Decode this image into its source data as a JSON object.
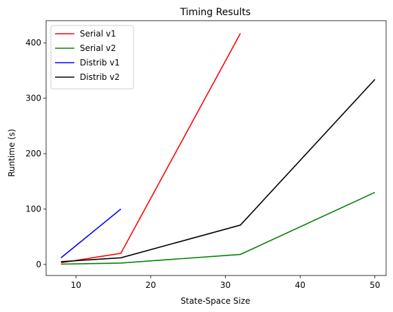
{
  "chart_data": {
    "type": "line",
    "title": "Timing Results",
    "xlabel": "State-Space Size",
    "ylabel": "Runtime (s)",
    "xlim": [
      6,
      51.5
    ],
    "ylim": [
      -20,
      440
    ],
    "xticks": [
      10,
      20,
      30,
      40,
      50
    ],
    "yticks": [
      0,
      100,
      200,
      300,
      400
    ],
    "grid": false,
    "legend": "top-left",
    "series": [
      {
        "name": "Serial v1",
        "color": "#ff0000",
        "x": [
          8,
          16,
          32
        ],
        "y": [
          3,
          20,
          417
        ]
      },
      {
        "name": "Serial v2",
        "color": "#008000",
        "x": [
          8,
          16,
          32,
          50
        ],
        "y": [
          0.5,
          2.5,
          18,
          130
        ]
      },
      {
        "name": "Distrib v1",
        "color": "#0000ff",
        "x": [
          8,
          16
        ],
        "y": [
          12,
          100
        ]
      },
      {
        "name": "Distrib v2",
        "color": "#000000",
        "x": [
          8,
          16,
          32,
          50
        ],
        "y": [
          5,
          12,
          71,
          334
        ]
      }
    ]
  }
}
